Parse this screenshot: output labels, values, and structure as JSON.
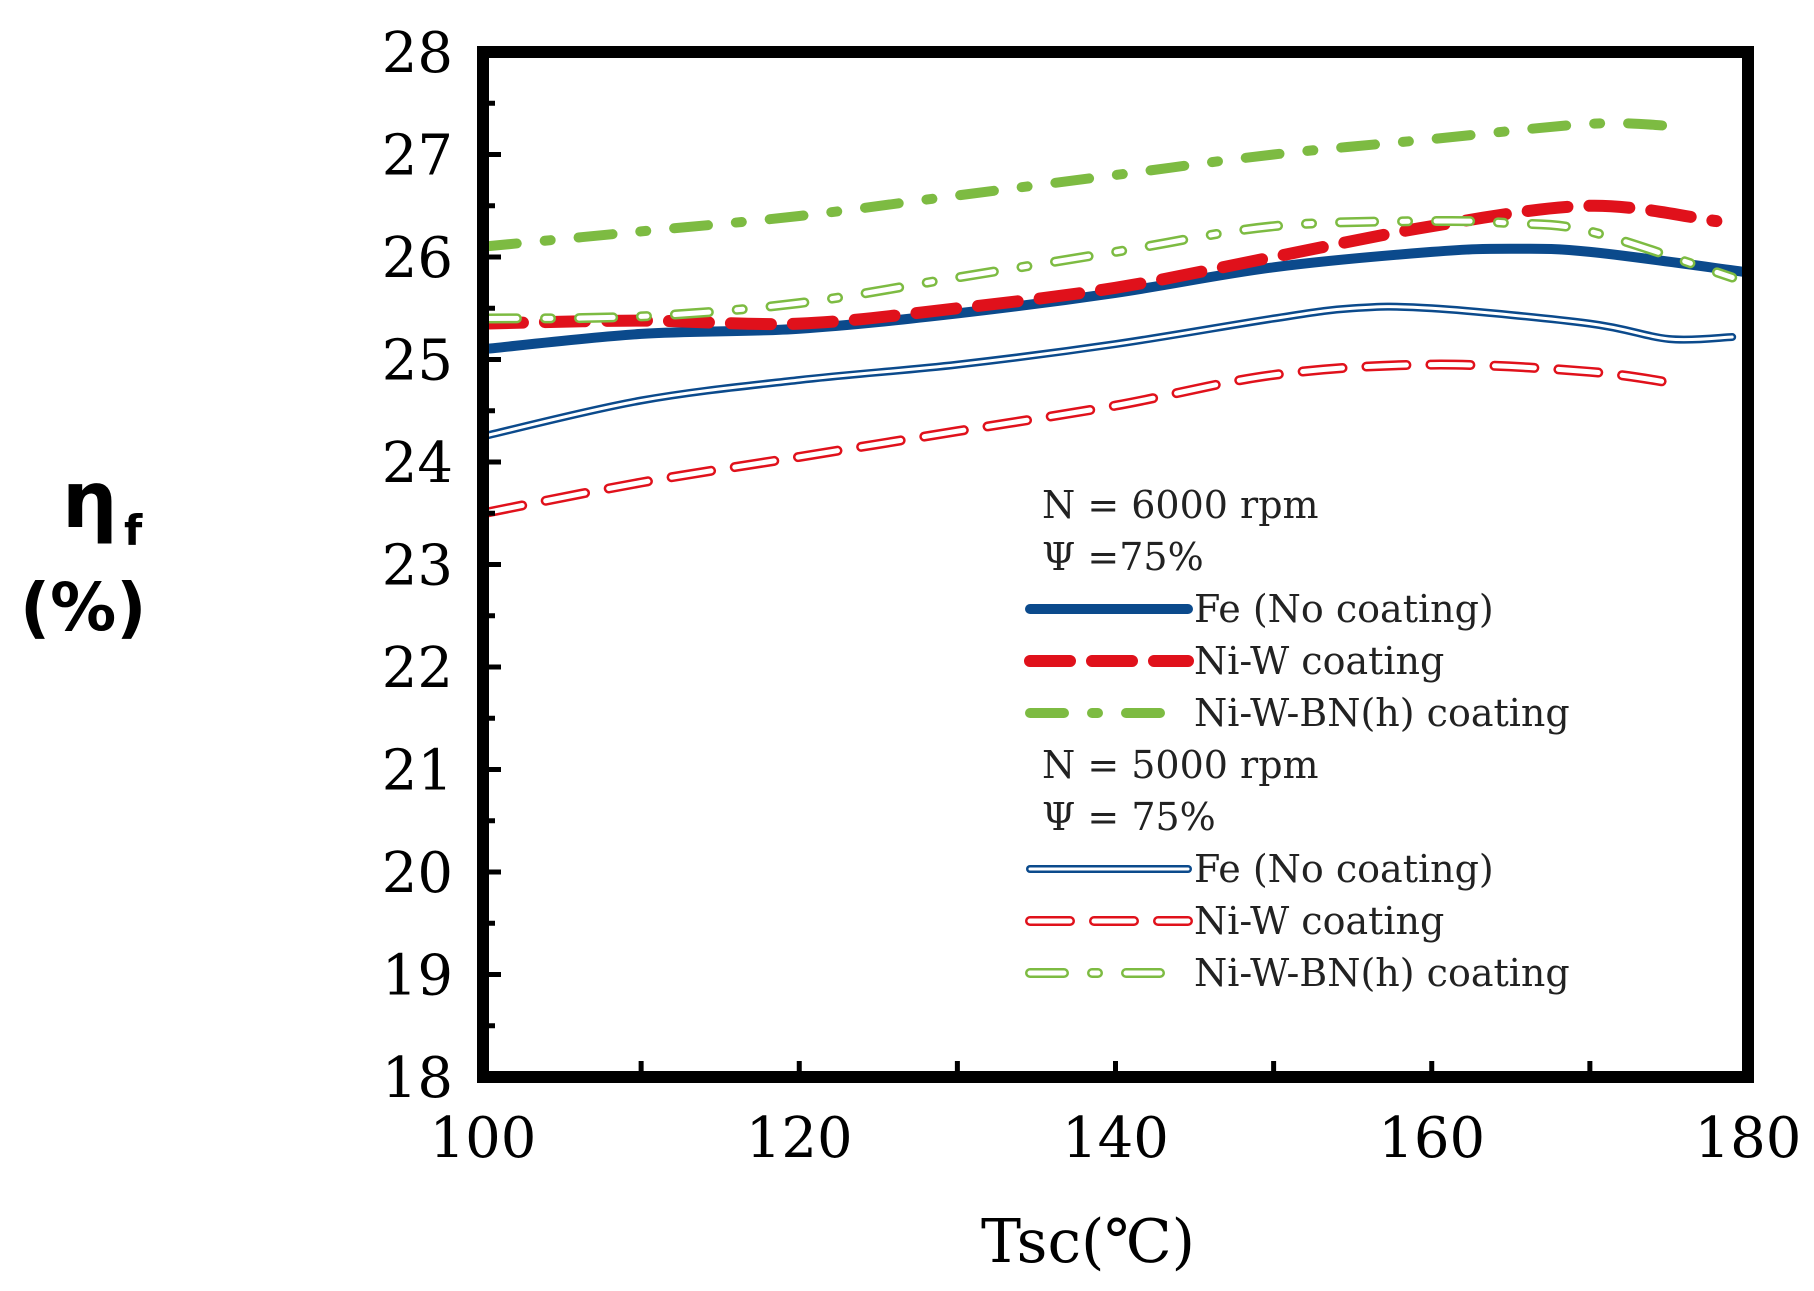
{
  "chart_data": {
    "type": "line",
    "xlabel": "Tsc(℃)",
    "ylabel": "η",
    "ylabel_sub": "f",
    "ylabel_unit": "(%)",
    "xlim": [
      100,
      180
    ],
    "ylim": [
      18,
      28
    ],
    "xticks": [
      100,
      120,
      140,
      160,
      180
    ],
    "yticks": [
      18,
      19,
      20,
      21,
      22,
      23,
      24,
      25,
      26,
      27,
      28
    ],
    "grid": false,
    "legend_position": "right-middle",
    "groups": [
      {
        "header": [
          "N = 6000 rpm",
          "Ψ =75%"
        ],
        "series_indices": [
          0,
          1,
          2
        ]
      },
      {
        "header": [
          "N = 5000 rpm",
          "Ψ = 75%"
        ],
        "series_indices": [
          3,
          4,
          5
        ]
      }
    ],
    "series": [
      {
        "name": "Fe (No coating)",
        "group": "N = 6000 rpm",
        "style": "solid",
        "color": "#0b4a8c",
        "x": [
          100,
          110,
          120,
          130,
          140,
          150,
          160,
          165,
          170,
          180
        ],
        "y": [
          25.1,
          25.25,
          25.3,
          25.45,
          25.65,
          25.9,
          26.05,
          26.08,
          26.05,
          25.85
        ]
      },
      {
        "name": "Ni-W coating",
        "group": "N = 6000 rpm",
        "style": "dashed",
        "color": "#e0111b",
        "x": [
          100,
          110,
          120,
          130,
          140,
          150,
          160,
          170,
          178
        ],
        "y": [
          25.35,
          25.38,
          25.35,
          25.5,
          25.7,
          26.0,
          26.3,
          26.5,
          26.35
        ]
      },
      {
        "name": "Ni-W-BN(h) coating",
        "group": "N = 6000 rpm",
        "style": "dashdot",
        "color": "#7dbb42",
        "x": [
          100,
          110,
          120,
          130,
          140,
          150,
          160,
          170,
          175
        ],
        "y": [
          26.1,
          26.25,
          26.4,
          26.6,
          26.8,
          27.0,
          27.15,
          27.3,
          27.28
        ]
      },
      {
        "name": "Fe (No coating)",
        "group": "N = 5000 rpm",
        "style": "solid-hollow",
        "color": "#0b4a8c",
        "x": [
          100,
          110,
          120,
          130,
          140,
          150,
          155,
          160,
          170,
          175,
          179
        ],
        "y": [
          24.25,
          24.6,
          24.8,
          24.95,
          25.15,
          25.4,
          25.5,
          25.5,
          25.35,
          25.2,
          25.22
        ]
      },
      {
        "name": "Ni-W coating",
        "group": "N = 5000 rpm",
        "style": "dashed-hollow",
        "color": "#e0111b",
        "x": [
          100,
          110,
          120,
          130,
          140,
          150,
          160,
          170,
          176
        ],
        "y": [
          23.5,
          23.8,
          24.05,
          24.3,
          24.55,
          24.85,
          24.95,
          24.88,
          24.75
        ]
      },
      {
        "name": "Ni-W-BN(h) coating",
        "group": "N = 5000 rpm",
        "style": "dashdot-hollow",
        "color": "#7dbb42",
        "x": [
          100,
          110,
          120,
          130,
          140,
          150,
          160,
          165,
          170,
          179
        ],
        "y": [
          25.4,
          25.42,
          25.55,
          25.8,
          26.05,
          26.3,
          26.35,
          26.33,
          26.25,
          25.8
        ]
      }
    ]
  }
}
